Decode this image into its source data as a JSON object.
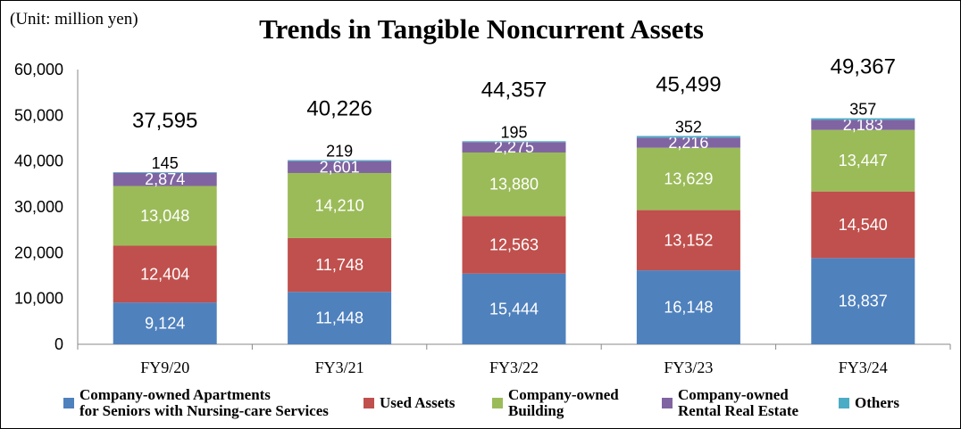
{
  "unit_note": "(Unit: million yen)",
  "chart_data": {
    "type": "bar",
    "stacked": true,
    "title": "Trends in Tangible Noncurrent Assets",
    "categories": [
      "FY9/20",
      "FY3/21",
      "FY3/22",
      "FY3/23",
      "FY3/24"
    ],
    "ylim": [
      0,
      60000
    ],
    "yticks": [
      "0",
      "10,000",
      "20,000",
      "30,000",
      "40,000",
      "50,000",
      "60,000"
    ],
    "legend_position": "bottom",
    "grid": false,
    "series": [
      {
        "name": "Company-owned Apartments for Seniors with Nursing-care Services",
        "label_lines": [
          "Company-owned Apartments",
          "for Seniors with Nursing-care Services"
        ],
        "color": "#4f81bd",
        "label_color": "#ffffff",
        "values": [
          9124,
          11448,
          15444,
          16148,
          18837
        ],
        "labels": [
          "9,124",
          "11,448",
          "15,444",
          "16,148",
          "18,837"
        ]
      },
      {
        "name": "Used Assets",
        "label_lines": [
          "Used Assets"
        ],
        "color": "#c0504d",
        "label_color": "#ffffff",
        "values": [
          12404,
          11748,
          12563,
          13152,
          14540
        ],
        "labels": [
          "12,404",
          "11,748",
          "12,563",
          "13,152",
          "14,540"
        ]
      },
      {
        "name": "Company-owned Building",
        "label_lines": [
          "Company-owned",
          "Building"
        ],
        "color": "#9bbb59",
        "label_color": "#ffffff",
        "values": [
          13048,
          14210,
          13880,
          13629,
          13447
        ],
        "labels": [
          "13,048",
          "14,210",
          "13,880",
          "13,629",
          "13,447"
        ]
      },
      {
        "name": "Company-owned Rental Real Estate",
        "label_lines": [
          "Company-owned",
          "Rental Real Estate"
        ],
        "color": "#8064a2",
        "label_color": "#ffffff",
        "values": [
          2874,
          2601,
          2275,
          2216,
          2183
        ],
        "labels": [
          "2,874",
          "2,601",
          "2,275",
          "2,216",
          "2,183"
        ]
      },
      {
        "name": "Others",
        "label_lines": [
          "Others"
        ],
        "color": "#4bacc6",
        "label_color": "#000000",
        "values": [
          145,
          219,
          195,
          352,
          357
        ],
        "labels": [
          "145",
          "219",
          "195",
          "352",
          "357"
        ]
      }
    ],
    "totals": [
      "37,595",
      "40,226",
      "44,357",
      "45,499",
      "49,367"
    ]
  }
}
